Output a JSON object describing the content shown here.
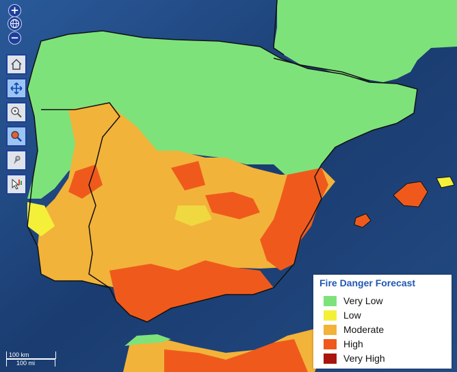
{
  "legend": {
    "title": "Fire Danger Forecast",
    "items": [
      {
        "label": "Very Low",
        "color": "#7ee27b"
      },
      {
        "label": "Low",
        "color": "#f4f03a"
      },
      {
        "label": "Moderate",
        "color": "#f2b33a"
      },
      {
        "label": "High",
        "color": "#ef5a1c"
      },
      {
        "label": "Very High",
        "color": "#a8150c"
      }
    ]
  },
  "zoom": {
    "in_label": "+",
    "out_label": "−"
  },
  "tools": [
    {
      "name": "home-icon",
      "active": false
    },
    {
      "name": "pan-icon",
      "active": true
    },
    {
      "name": "zoom-box-icon",
      "active": false
    },
    {
      "name": "search-icon",
      "active": true
    },
    {
      "name": "identify-icon",
      "active": false
    },
    {
      "name": "query-icon",
      "active": false
    }
  ],
  "scale": {
    "metric": "100 km",
    "imperial": "100 mi"
  },
  "colors": {
    "sea": "#20406a",
    "land_dark": "#5a6a4a",
    "border": "#111111"
  }
}
